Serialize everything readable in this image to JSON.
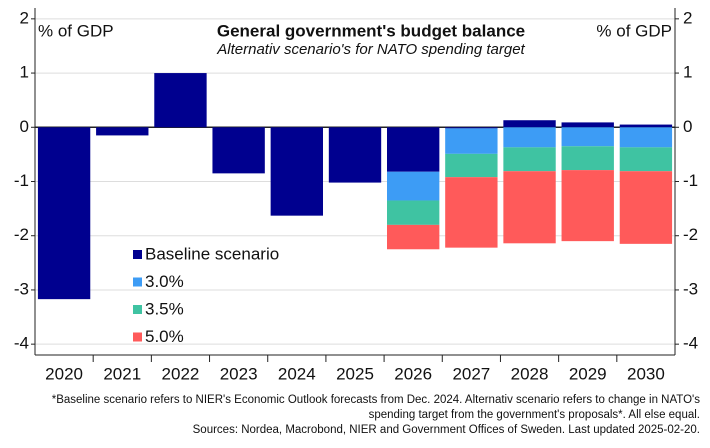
{
  "chart_data": {
    "type": "bar",
    "stacked": true,
    "title": "General government's budget balance",
    "subtitle": "Alternativ scenario's for NATO spending target",
    "y_label_left": "% of GDP",
    "y_label_right": "% of GDP",
    "categories": [
      "2020",
      "2021",
      "2022",
      "2023",
      "2024",
      "2025",
      "2026",
      "2027",
      "2028",
      "2029",
      "2030"
    ],
    "series": [
      {
        "name": "Baseline scenario",
        "color": "#00008f",
        "values": [
          -3.17,
          -0.15,
          1.0,
          -0.85,
          -1.63,
          -1.02,
          -0.82,
          -0.02,
          0.13,
          0.09,
          0.05
        ]
      },
      {
        "name": "3.0%",
        "color": "#3d9cf5",
        "values": [
          null,
          null,
          null,
          null,
          null,
          null,
          -0.53,
          -0.47,
          -0.37,
          -0.35,
          -0.37
        ]
      },
      {
        "name": "3.5%",
        "color": "#3fc3a2",
        "values": [
          null,
          null,
          null,
          null,
          null,
          null,
          -0.45,
          -0.43,
          -0.44,
          -0.44,
          -0.44
        ]
      },
      {
        "name": "5.0%",
        "color": "#ff5a5a",
        "values": [
          null,
          null,
          null,
          null,
          null,
          null,
          -0.45,
          -1.3,
          -1.33,
          -1.31,
          -1.34
        ]
      }
    ],
    "ylim": [
      -4.2,
      2.2
    ],
    "yticks": [
      -4,
      -3,
      -2,
      -1,
      0,
      1,
      2
    ],
    "grid": true,
    "notes": [
      "*Baseline scenario refers to NIER's Economic Outlook forecasts from Dec. 2024. Alternativ scenario refers to change in NATO's",
      "spending target from the government's proposals*. All else equal.",
      "Sources: Nordea, Macrobond, NIER and Government Offices of Sweden. Last updated 2025-02-20."
    ]
  }
}
